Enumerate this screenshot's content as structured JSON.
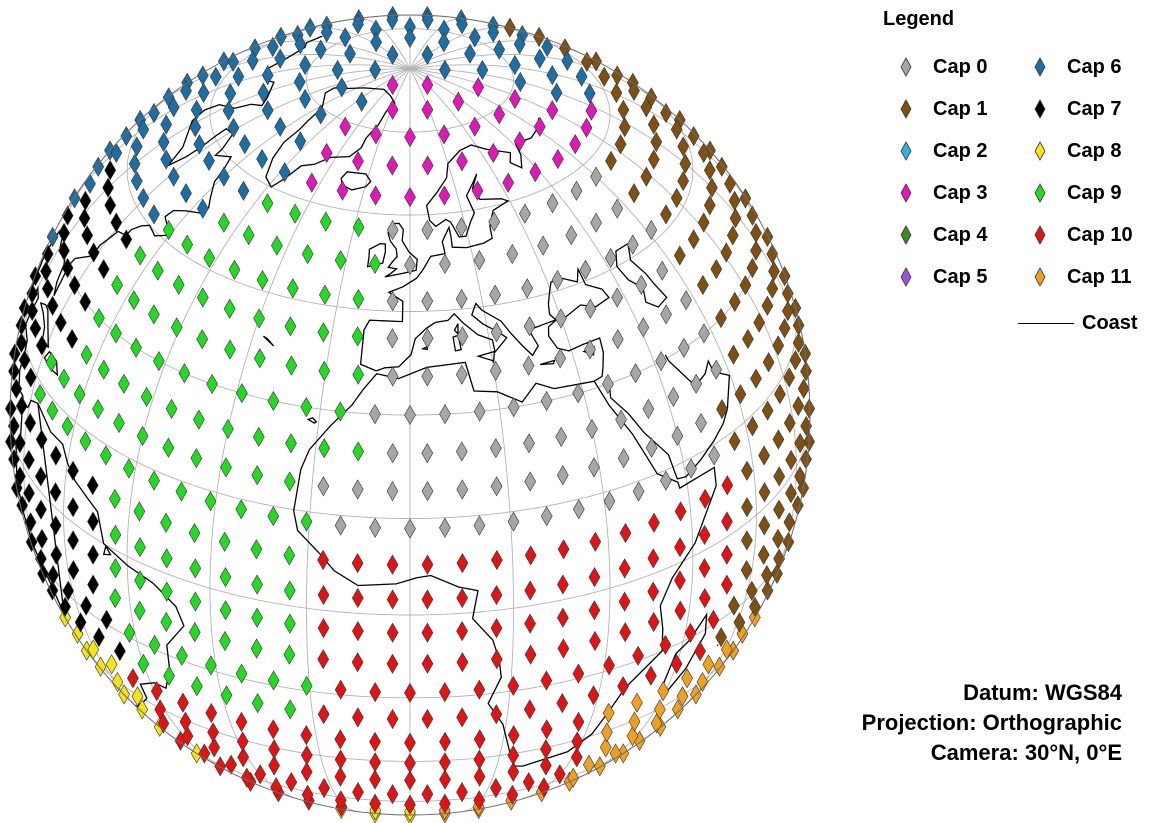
{
  "legend": {
    "title": "Legend",
    "items": [
      {
        "label": "Cap 0",
        "color": "#a6a6a6"
      },
      {
        "label": "Cap 1",
        "color": "#7f5012"
      },
      {
        "label": "Cap 2",
        "color": "#2bb3e6"
      },
      {
        "label": "Cap 3",
        "color": "#e018b8"
      },
      {
        "label": "Cap 4",
        "color": "#3f8a1c"
      },
      {
        "label": "Cap 5",
        "color": "#9b52e0"
      },
      {
        "label": "Cap 6",
        "color": "#1f6ea3"
      },
      {
        "label": "Cap 7",
        "color": "#000000"
      },
      {
        "label": "Cap 8",
        "color": "#f2e416"
      },
      {
        "label": "Cap 9",
        "color": "#24d924"
      },
      {
        "label": "Cap 10",
        "color": "#e01414"
      },
      {
        "label": "Cap 11",
        "color": "#f0a020"
      }
    ],
    "coast_label": "Coast"
  },
  "info": {
    "datum": "Datum: WGS84",
    "projection": "Projection: Orthographic",
    "camera": "Camera: 30°N, 0°E"
  },
  "map": {
    "projection": "orthographic",
    "center_lat": 30,
    "center_lon": 0,
    "graticule_lat_step": 30,
    "graticule_lon_step": 30,
    "marker_shape": "diamond",
    "coast_color": "#000000",
    "graticule_color": "#b4b4b4"
  }
}
